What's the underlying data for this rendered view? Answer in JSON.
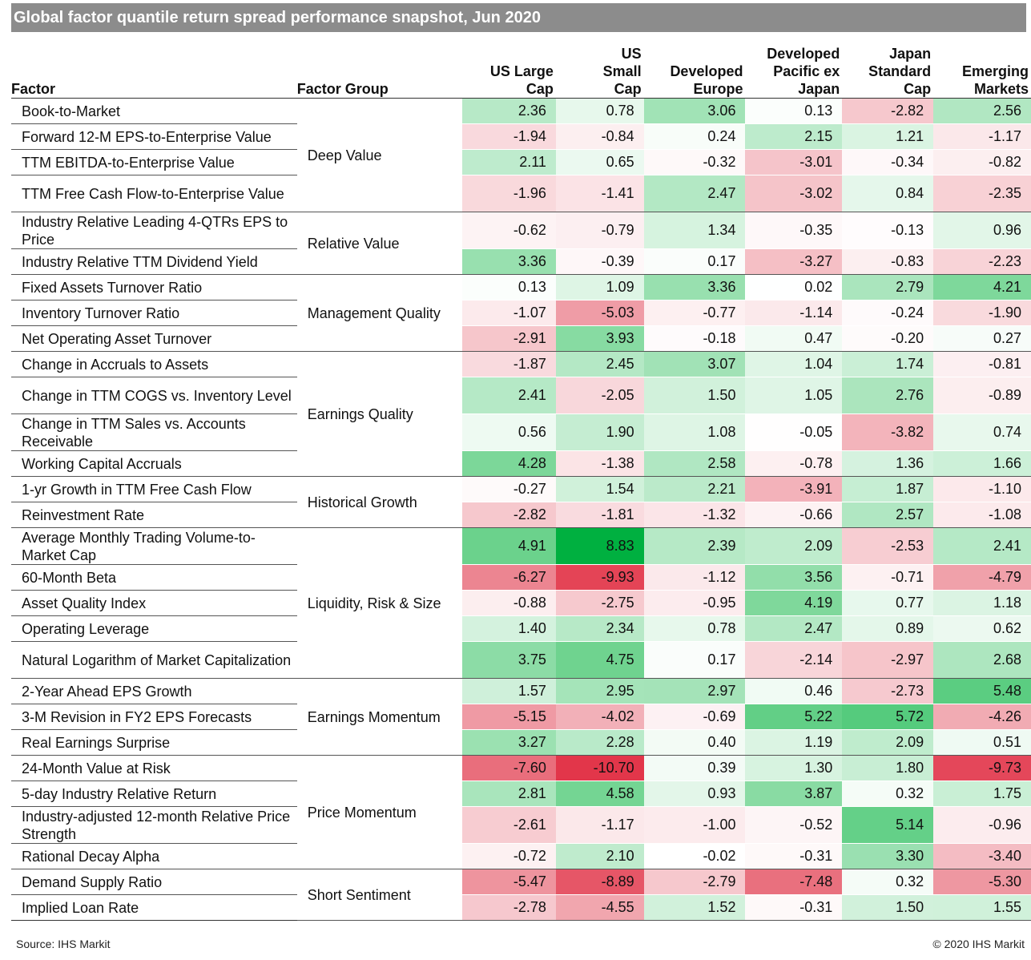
{
  "header": {
    "title": "Global factor quantile return spread performance snapshot, Jun 2020",
    "col_factor": "Factor",
    "col_group": "Factor Group"
  },
  "footer": {
    "source": "Source: IHS Markit",
    "copyright": "© 2020 IHS Markit"
  },
  "chart_data": {
    "type": "table",
    "title": "Global factor quantile return spread performance snapshot, Jun 2020",
    "columns": [
      [
        "US Large",
        "Cap"
      ],
      [
        "US",
        "Small",
        "Cap"
      ],
      [
        "Developed",
        "Europe"
      ],
      [
        "Developed",
        "Pacific ex",
        "Japan"
      ],
      [
        "Japan",
        "Standard",
        "Cap"
      ],
      [
        "Emerging",
        "Markets"
      ]
    ],
    "groups": [
      {
        "name": "Deep Value",
        "rows": [
          {
            "factor": "Book-to-Market",
            "values": [
              2.36,
              0.78,
              3.06,
              0.13,
              -2.82,
              2.56
            ]
          },
          {
            "factor": "Forward 12-M EPS-to-Enterprise Value",
            "values": [
              -1.94,
              -0.84,
              0.24,
              2.15,
              1.21,
              -1.17
            ]
          },
          {
            "factor": "TTM EBITDA-to-Enterprise Value",
            "values": [
              2.11,
              0.65,
              -0.32,
              -3.01,
              -0.34,
              -0.82
            ]
          },
          {
            "factor": "TTM Free Cash Flow-to-Enterprise Value",
            "values": [
              -1.96,
              -1.41,
              2.47,
              -3.02,
              0.84,
              -2.35
            ]
          }
        ]
      },
      {
        "name": "Relative Value",
        "rows": [
          {
            "factor": "Industry Relative Leading 4-QTRs EPS to Price",
            "values": [
              -0.62,
              -0.79,
              1.34,
              -0.35,
              -0.13,
              0.96
            ]
          },
          {
            "factor": "Industry Relative TTM Dividend Yield",
            "values": [
              3.36,
              -0.39,
              0.17,
              -3.27,
              -0.83,
              -2.23
            ]
          }
        ]
      },
      {
        "name": "Management Quality",
        "rows": [
          {
            "factor": "Fixed Assets Turnover Ratio",
            "values": [
              0.13,
              1.09,
              3.36,
              0.02,
              2.79,
              4.21
            ]
          },
          {
            "factor": "Inventory Turnover Ratio",
            "values": [
              -1.07,
              -5.03,
              -0.77,
              -1.14,
              -0.24,
              -1.9
            ]
          },
          {
            "factor": "Net Operating Asset Turnover",
            "values": [
              -2.91,
              3.93,
              -0.18,
              0.47,
              -0.2,
              0.27
            ]
          }
        ]
      },
      {
        "name": "Earnings Quality",
        "rows": [
          {
            "factor": "Change in Accruals to Assets",
            "values": [
              -1.87,
              2.45,
              3.07,
              1.04,
              1.74,
              -0.81
            ]
          },
          {
            "factor": "Change in TTM COGS vs. Inventory Level",
            "values": [
              2.41,
              -2.05,
              1.5,
              1.05,
              2.76,
              -0.89
            ]
          },
          {
            "factor": "Change in TTM Sales vs. Accounts Receivable",
            "values": [
              0.56,
              1.9,
              1.08,
              -0.05,
              -3.82,
              0.74
            ]
          },
          {
            "factor": "Working Capital Accruals",
            "values": [
              4.28,
              -1.38,
              2.58,
              -0.78,
              1.36,
              1.66
            ]
          }
        ]
      },
      {
        "name": "Historical Growth",
        "rows": [
          {
            "factor": "1-yr Growth in TTM Free Cash Flow",
            "values": [
              -0.27,
              1.54,
              2.21,
              -3.91,
              1.87,
              -1.1
            ]
          },
          {
            "factor": "Reinvestment Rate",
            "values": [
              -2.82,
              -1.81,
              -1.32,
              -0.66,
              2.57,
              -1.08
            ]
          }
        ]
      },
      {
        "name": "Liquidity, Risk & Size",
        "rows": [
          {
            "factor": "Average Monthly Trading Volume-to-Market Cap",
            "values": [
              4.91,
              8.83,
              2.39,
              2.09,
              -2.53,
              2.41
            ]
          },
          {
            "factor": "60-Month Beta",
            "values": [
              -6.27,
              -9.93,
              -1.12,
              3.56,
              -0.71,
              -4.79
            ]
          },
          {
            "factor": "Asset Quality Index",
            "values": [
              -0.88,
              -2.75,
              -0.95,
              4.19,
              0.77,
              1.18
            ]
          },
          {
            "factor": "Operating Leverage",
            "values": [
              1.4,
              2.34,
              0.78,
              2.47,
              0.89,
              0.62
            ]
          },
          {
            "factor": "Natural Logarithm of Market Capitalization",
            "values": [
              3.75,
              4.75,
              0.17,
              -2.14,
              -2.97,
              2.68
            ]
          }
        ]
      },
      {
        "name": "Earnings Momentum",
        "rows": [
          {
            "factor": "2-Year Ahead EPS Growth",
            "values": [
              1.57,
              2.95,
              2.97,
              0.46,
              -2.73,
              5.48
            ]
          },
          {
            "factor": "3-M Revision in FY2 EPS Forecasts",
            "values": [
              -5.15,
              -4.02,
              -0.69,
              5.22,
              5.72,
              -4.26
            ]
          },
          {
            "factor": "Real Earnings Surprise",
            "values": [
              3.27,
              2.28,
              0.4,
              1.19,
              2.09,
              0.51
            ]
          }
        ]
      },
      {
        "name": "Price Momentum",
        "rows": [
          {
            "factor": "24-Month Value at Risk",
            "values": [
              -7.6,
              -10.7,
              0.39,
              1.3,
              1.8,
              -9.73
            ]
          },
          {
            "factor": "5-day Industry Relative Return",
            "values": [
              2.81,
              4.58,
              0.93,
              3.87,
              0.32,
              1.75
            ]
          },
          {
            "factor": "Industry-adjusted 12-month Relative Price Strength",
            "values": [
              -2.61,
              -1.17,
              -1.0,
              -0.52,
              5.14,
              -0.96
            ]
          },
          {
            "factor": "Rational Decay Alpha",
            "values": [
              -0.72,
              2.1,
              -0.02,
              -0.31,
              3.3,
              -3.4
            ]
          }
        ]
      },
      {
        "name": "Short Sentiment",
        "rows": [
          {
            "factor": "Demand Supply Ratio",
            "values": [
              -5.47,
              -8.89,
              -2.79,
              -7.48,
              0.32,
              -5.3
            ]
          },
          {
            "factor": "Implied Loan Rate",
            "values": [
              -2.78,
              -4.55,
              1.52,
              -0.31,
              1.5,
              1.55
            ]
          }
        ]
      }
    ]
  }
}
